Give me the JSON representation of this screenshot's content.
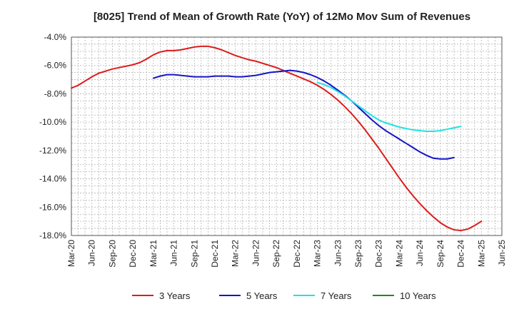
{
  "chart_data": {
    "type": "line",
    "title": "[8025]  Trend of Mean of Growth Rate (YoY) of 12Mo Mov Sum of Revenues",
    "xlabel": "",
    "ylabel": "",
    "ylim": [
      -18.0,
      -4.0
    ],
    "y_ticks": [
      "-4.0%",
      "-6.0%",
      "-8.0%",
      "-10.0%",
      "-12.0%",
      "-14.0%",
      "-16.0%",
      "-18.0%"
    ],
    "y_tick_values": [
      -4,
      -6,
      -8,
      -10,
      -12,
      -14,
      -16,
      -18
    ],
    "x_ticks": [
      "Mar-20",
      "Jun-20",
      "Sep-20",
      "Dec-20",
      "Mar-21",
      "Jun-21",
      "Sep-21",
      "Dec-21",
      "Mar-22",
      "Jun-22",
      "Sep-22",
      "Dec-22",
      "Mar-23",
      "Jun-23",
      "Sep-23",
      "Dec-23",
      "Mar-24",
      "Jun-24",
      "Sep-24",
      "Dec-24",
      "Mar-25",
      "Jun-25"
    ],
    "grid": true,
    "legend_position": "bottom",
    "series": [
      {
        "name": "3 Years",
        "color": "#dd1c1c",
        "start_index": 0,
        "values": [
          -7.6,
          -7.4,
          -7.1,
          -6.8,
          -6.55,
          -6.4,
          -6.25,
          -6.15,
          -6.05,
          -5.95,
          -5.8,
          -5.55,
          -5.25,
          -5.05,
          -4.95,
          -4.95,
          -4.9,
          -4.8,
          -4.7,
          -4.65,
          -4.65,
          -4.75,
          -4.9,
          -5.1,
          -5.3,
          -5.45,
          -5.6,
          -5.7,
          -5.85,
          -6.0,
          -6.15,
          -6.35,
          -6.55,
          -6.75,
          -6.95,
          -7.15,
          -7.4,
          -7.7,
          -8.05,
          -8.45,
          -8.9,
          -9.4,
          -9.95,
          -10.55,
          -11.2,
          -11.85,
          -12.55,
          -13.25,
          -13.95,
          -14.6,
          -15.2,
          -15.75,
          -16.25,
          -16.7,
          -17.1,
          -17.4,
          -17.6,
          -17.65,
          -17.55,
          -17.3,
          -17.0
        ]
      },
      {
        "name": "5 Years",
        "color": "#1515c8",
        "start_index": 12,
        "values": [
          -6.9,
          -6.75,
          -6.65,
          -6.65,
          -6.7,
          -6.75,
          -6.8,
          -6.8,
          -6.8,
          -6.75,
          -6.75,
          -6.75,
          -6.8,
          -6.8,
          -6.75,
          -6.7,
          -6.6,
          -6.5,
          -6.45,
          -6.4,
          -6.35,
          -6.4,
          -6.5,
          -6.65,
          -6.85,
          -7.1,
          -7.4,
          -7.75,
          -8.1,
          -8.5,
          -8.95,
          -9.4,
          -9.85,
          -10.25,
          -10.6,
          -10.9,
          -11.2,
          -11.5,
          -11.8,
          -12.1,
          -12.35,
          -12.55,
          -12.6,
          -12.6,
          -12.5
        ]
      },
      {
        "name": "7 Years",
        "color": "#22e0e0",
        "start_index": 36,
        "values": [
          -7.2,
          -7.35,
          -7.55,
          -7.85,
          -8.15,
          -8.5,
          -8.85,
          -9.2,
          -9.55,
          -9.85,
          -10.05,
          -10.2,
          -10.35,
          -10.45,
          -10.55,
          -10.6,
          -10.65,
          -10.65,
          -10.6,
          -10.5,
          -10.4,
          -10.3
        ]
      },
      {
        "name": "10 Years",
        "color": "#1f8a1f",
        "start_index": 0,
        "values": []
      }
    ]
  }
}
